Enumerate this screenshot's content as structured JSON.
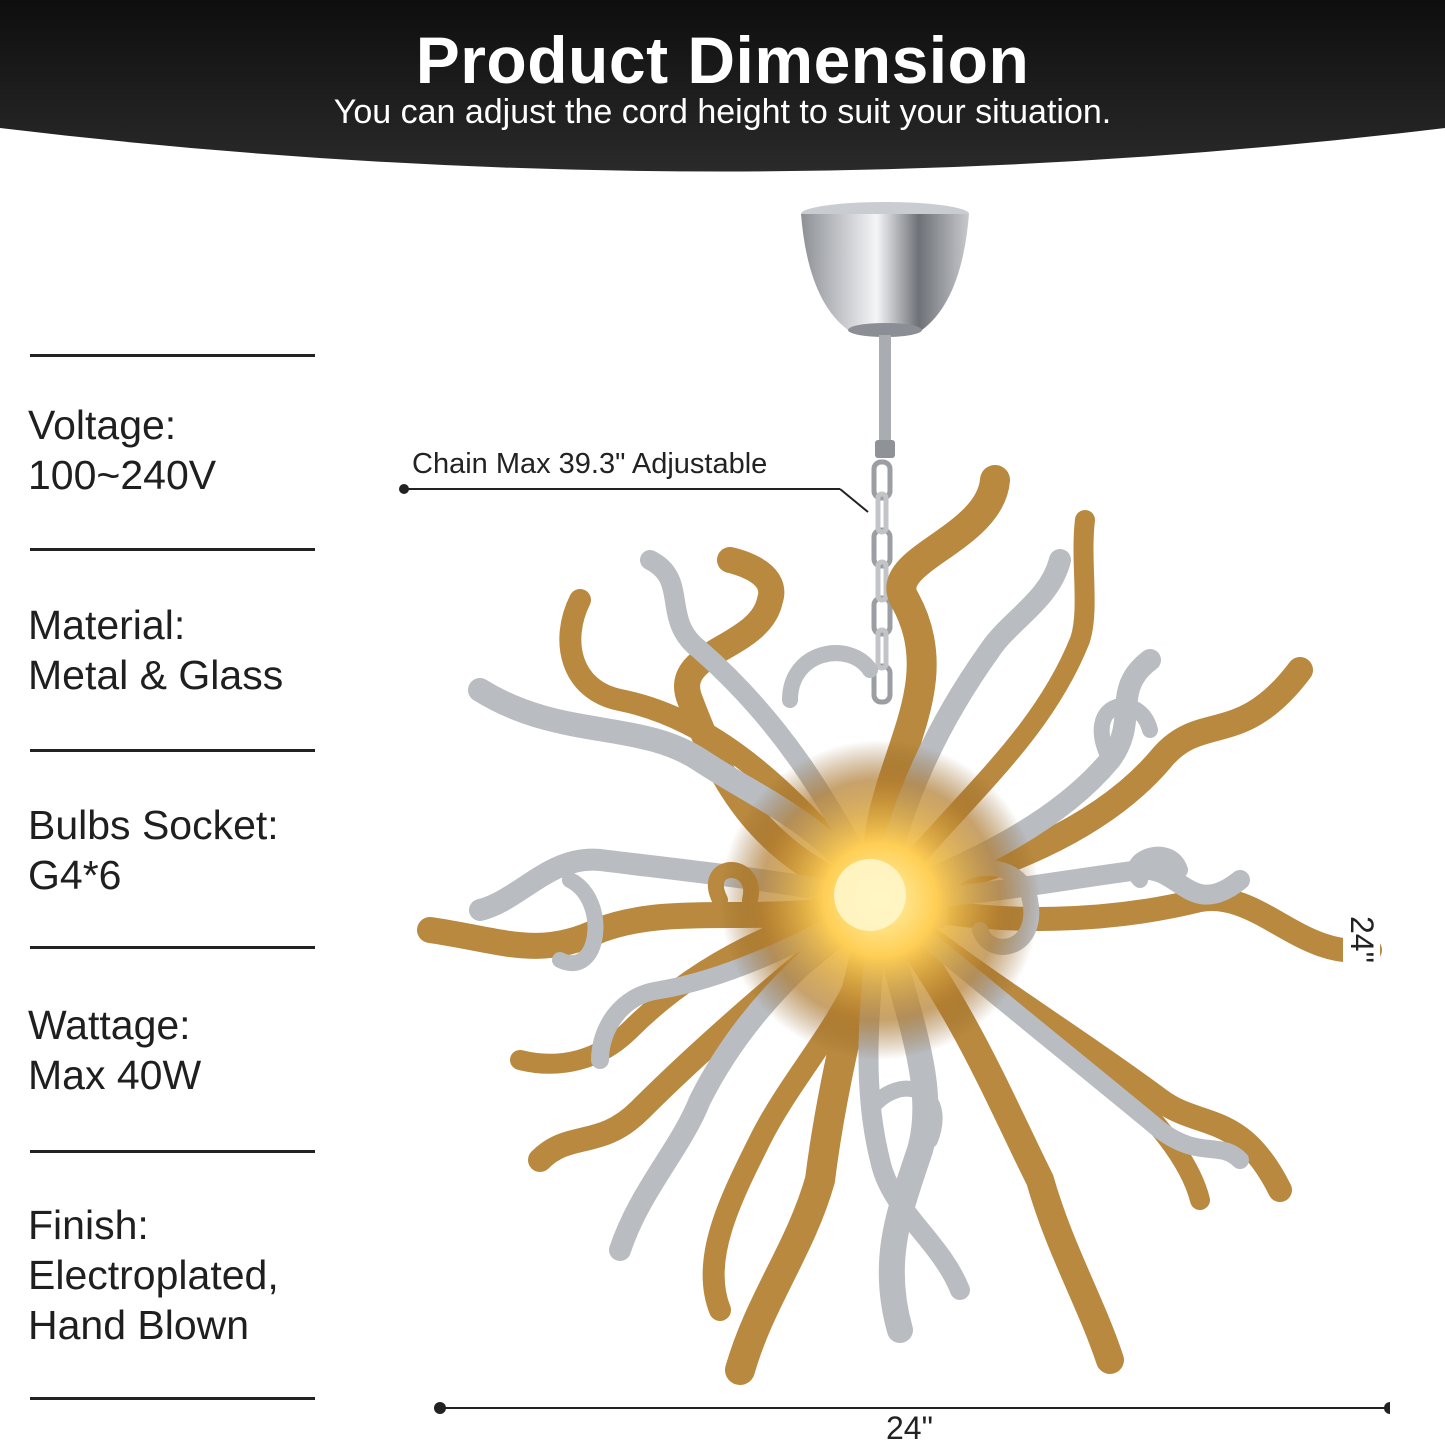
{
  "header": {
    "title": "Product Dimension",
    "subtitle": "You can adjust the cord height to suit your situation."
  },
  "specs": [
    {
      "label": "Voltage:",
      "value": "100~240V"
    },
    {
      "label": "Material:",
      "value": "Metal & Glass"
    },
    {
      "label": "Bulbs Socket:",
      "value": "G4*6"
    },
    {
      "label": "Wattage:",
      "value": "Max 40W"
    },
    {
      "label": "Finish:",
      "value": "Electroplated,",
      "value2": "Hand Blown"
    }
  ],
  "annotations": {
    "chain": "Chain Max 39.3\" Adjustable",
    "width": "24\"",
    "height": "24\""
  },
  "colors": {
    "banner": "#1b1b1b",
    "gold": "#b8893e",
    "silver": "#b9bcc0",
    "glow": "#ffd66b"
  }
}
